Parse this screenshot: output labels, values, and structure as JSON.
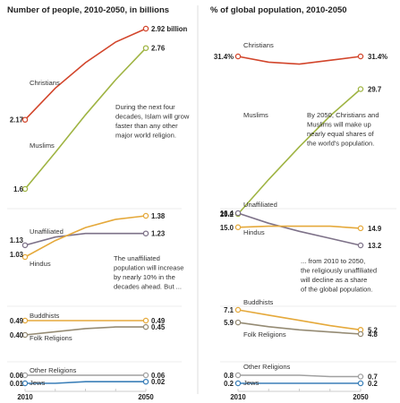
{
  "chart_data": [
    {
      "type": "line",
      "title": "Number of people, 2010-2050, in billions",
      "x": [
        2010,
        2020,
        2030,
        2040,
        2050
      ],
      "xticks": [
        "2010",
        "2050"
      ],
      "unit_suffix": "billion",
      "groups": [
        {
          "series": [
            {
              "name": "Christians",
              "color": "#d2452b",
              "values": [
                2.17,
                2.43,
                2.64,
                2.81,
                2.92
              ],
              "start_label": "2.17",
              "end_label": "2.92"
            },
            {
              "name": "Muslims",
              "color": "#9fb443",
              "values": [
                1.6,
                1.9,
                2.21,
                2.5,
                2.76
              ],
              "start_label": "1.6",
              "end_label": "2.76"
            }
          ],
          "note": [
            "During the next four",
            "decades, Islam will grow",
            "faster than any other",
            "major world religion."
          ]
        },
        {
          "series": [
            {
              "name": "Unaffiliated",
              "color": "#7e7289",
              "values": [
                1.13,
                1.2,
                1.23,
                1.23,
                1.23
              ],
              "start_label": "1.13",
              "end_label": "1.23"
            },
            {
              "name": "Hindus",
              "color": "#e5a93b",
              "values": [
                1.03,
                1.17,
                1.28,
                1.35,
                1.38
              ],
              "start_label": "1.03",
              "end_label": "1.38"
            }
          ],
          "note": [
            "The unaffiliated",
            "population will increase",
            "by nearly 10% in the",
            "decades ahead. But ..."
          ]
        },
        {
          "series": [
            {
              "name": "Buddhists",
              "color": "#e5a93b",
              "values": [
                0.49,
                0.49,
                0.49,
                0.49,
                0.49
              ],
              "start_label": "0.49",
              "end_label": "0.49"
            },
            {
              "name": "Folk Religions",
              "color": "#958b74",
              "values": [
                0.4,
                0.42,
                0.44,
                0.45,
                0.45
              ],
              "start_label": "0.40",
              "end_label": "0.45"
            }
          ]
        },
        {
          "series": [
            {
              "name": "Other Religions",
              "color": "#a0a0a0",
              "values": [
                0.06,
                0.06,
                0.06,
                0.06,
                0.06
              ],
              "start_label": "0.06",
              "end_label": "0.06"
            },
            {
              "name": "Jews",
              "color": "#3b7fb8",
              "values": [
                0.01,
                0.01,
                0.02,
                0.02,
                0.02
              ],
              "start_label": "0.01",
              "end_label": "0.02"
            }
          ]
        }
      ]
    },
    {
      "type": "line",
      "title": "% of global population, 2010-2050",
      "x": [
        2010,
        2020,
        2030,
        2040,
        2050
      ],
      "xticks": [
        "2010",
        "2050"
      ],
      "groups": [
        {
          "series": [
            {
              "name": "Christians",
              "color": "#d2452b",
              "values": [
                31.4,
                31.1,
                31.0,
                31.2,
                31.4
              ],
              "start_label": "31.4%",
              "end_label": "31.4%"
            },
            {
              "name": "Muslims",
              "color": "#9fb443",
              "values": [
                23.2,
                25.0,
                26.7,
                28.3,
                29.7
              ],
              "start_label": "23.2",
              "end_label": "29.7"
            }
          ],
          "note": [
            "By 2050, Christians and",
            "Muslims will make up",
            "nearly equal shares of",
            "the world's population."
          ]
        },
        {
          "series": [
            {
              "name": "Unaffiliated",
              "color": "#7e7289",
              "values": [
                16.4,
                15.4,
                14.6,
                13.9,
                13.2
              ],
              "start_label": "16.4",
              "end_label": "13.2"
            },
            {
              "name": "Hindus",
              "color": "#e5a93b",
              "values": [
                15.0,
                15.1,
                15.1,
                15.1,
                14.9
              ],
              "start_label": "15.0",
              "end_label": "14.9"
            }
          ],
          "note": [
            "... from 2010 to 2050,",
            "the religiously unaffiliated",
            "will decline as a share",
            "of the global population."
          ]
        },
        {
          "series": [
            {
              "name": "Buddhists",
              "color": "#e5a93b",
              "values": [
                7.1,
                6.6,
                6.1,
                5.6,
                5.2
              ],
              "start_label": "7.1",
              "end_label": "5.2"
            },
            {
              "name": "Folk Religions",
              "color": "#958b74",
              "values": [
                5.9,
                5.5,
                5.2,
                5.0,
                4.8
              ],
              "start_label": "5.9",
              "end_label": "4.8"
            }
          ]
        },
        {
          "series": [
            {
              "name": "Other Religions",
              "color": "#a0a0a0",
              "values": [
                0.8,
                0.8,
                0.8,
                0.7,
                0.7
              ],
              "start_label": "0.8",
              "end_label": "0.7"
            },
            {
              "name": "Jews",
              "color": "#3b7fb8",
              "values": [
                0.2,
                0.2,
                0.2,
                0.2,
                0.2
              ],
              "start_label": "0.2",
              "end_label": "0.2"
            }
          ]
        }
      ]
    }
  ]
}
